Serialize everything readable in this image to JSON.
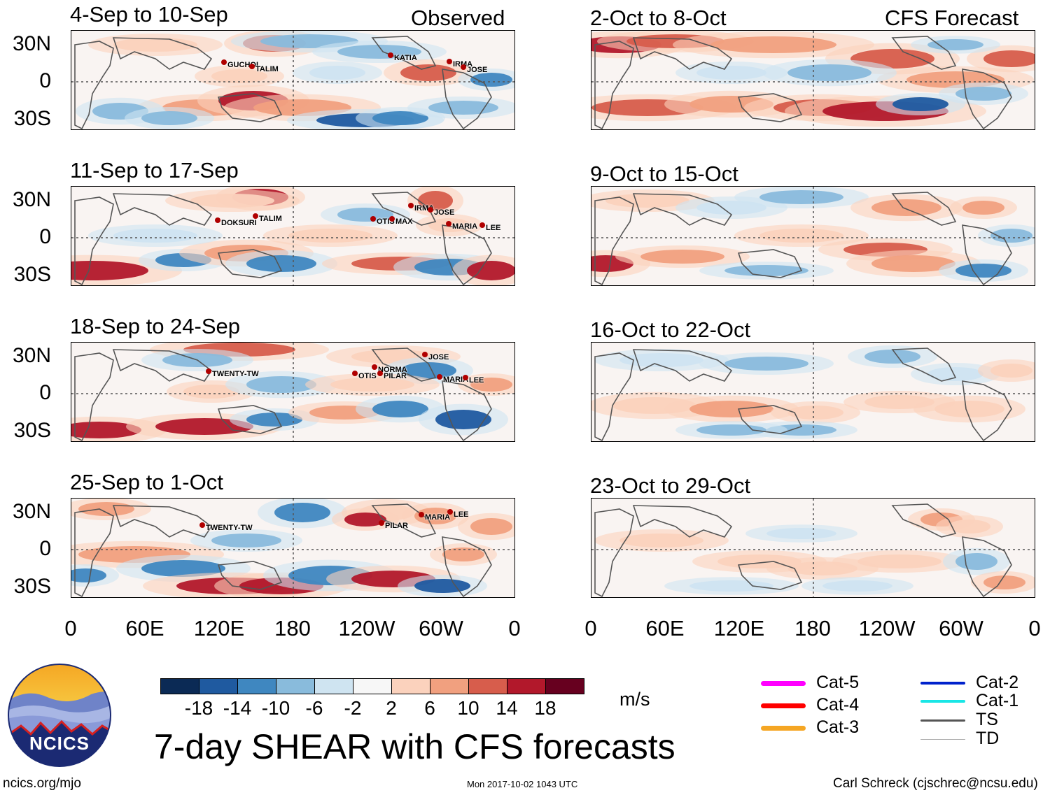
{
  "title": "7-day SHEAR with CFS forecasts",
  "logo_text": "NCICS",
  "observed_header": "Observed",
  "forecast_header": "CFS Forecast",
  "units": "m/s",
  "footer": {
    "left": "ncics.org/mjo",
    "center": "Mon 2017-10-02 1043 UTC",
    "right": "Carl Schreck (cjschrec@ncsu.edu)"
  },
  "y_ticks": [
    "30N",
    "0",
    "30S"
  ],
  "x_ticks": [
    "0",
    "60E",
    "120E",
    "180",
    "120W",
    "60W",
    "0"
  ],
  "colorbar": {
    "labels": [
      "-18",
      "-14",
      "-10",
      "-6",
      "-2",
      "2",
      "6",
      "10",
      "14",
      "18"
    ],
    "colors": [
      "#0b2a55",
      "#1f5aa0",
      "#3f87c0",
      "#89bbdc",
      "#cfe4f1",
      "#f7f7f7",
      "#fbd2bd",
      "#f1a07f",
      "#d75d4c",
      "#b2182b",
      "#67001f"
    ]
  },
  "legend": [
    {
      "label": "Cat-5",
      "color": "#ff00ff"
    },
    {
      "label": "Cat-4",
      "color": "#ff0000"
    },
    {
      "label": "Cat-3",
      "color": "#f5a623"
    },
    {
      "label": "Cat-2",
      "color": "#0022cc"
    },
    {
      "label": "Cat-1",
      "color": "#19e6e6"
    },
    {
      "label": "TS",
      "color": "#555555"
    },
    {
      "label": "TD",
      "color": "#aaaaaa"
    }
  ],
  "chart_data": {
    "type": "heatmap",
    "variable": "7-day vertical wind shear anomaly",
    "units": "m/s",
    "x_range": [
      "0",
      "0"
    ],
    "y_range": [
      "30S",
      "30N"
    ],
    "observed_panels": [
      {
        "period": "4-Sep to 10-Sep",
        "storms": [
          "GUCHOL",
          "TALIM",
          "KATIA",
          "IRMA",
          "JOSE"
        ]
      },
      {
        "period": "11-Sep to 17-Sep",
        "storms": [
          "DOKSURI",
          "TALIM",
          "OTIS",
          "MAX",
          "IRMA",
          "JOSE",
          "MARIA",
          "LEE"
        ]
      },
      {
        "period": "18-Sep to 24-Sep",
        "storms": [
          "TWENTY-TW",
          "NORMA",
          "OTIS",
          "PILAR",
          "JOSE",
          "MARIA",
          "LEE"
        ]
      },
      {
        "period": "25-Sep to 1-Oct",
        "storms": [
          "TWENTY-TW",
          "PILAR",
          "MARIA",
          "LEE"
        ]
      }
    ],
    "forecast_panels": [
      {
        "period": "2-Oct to 8-Oct"
      },
      {
        "period": "9-Oct to 15-Oct"
      },
      {
        "period": "16-Oct to 22-Oct"
      },
      {
        "period": "23-Oct to 29-Oct"
      }
    ]
  }
}
